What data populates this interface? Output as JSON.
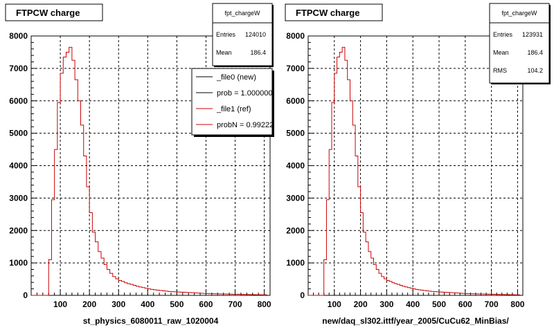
{
  "footer_text": "",
  "chart_data": [
    {
      "type": "histogram",
      "title": "FTPCW charge",
      "xlabel": "st_physics_6080011_raw_1020004",
      "ylabel": "",
      "xlim": [
        0,
        820
      ],
      "ylim": [
        0,
        8000
      ],
      "x_ticks": [
        100,
        200,
        300,
        400,
        500,
        600,
        700,
        800
      ],
      "y_ticks": [
        0,
        1000,
        2000,
        3000,
        4000,
        5000,
        6000,
        7000,
        8000
      ],
      "grid": true,
      "stats": {
        "name": "fpt_chargeW",
        "rows": [
          {
            "label": "Entries",
            "value": "124010"
          },
          {
            "label": "Mean",
            "value": "186.4"
          }
        ]
      },
      "legend": {
        "placement": "top-right",
        "entries": [
          {
            "label": "_file0 (new)",
            "color": "#000000"
          },
          {
            "label": "prob = 1.000000",
            "color": "#000000"
          },
          {
            "label": "_file1 (ref)",
            "color": "#cc0000"
          },
          {
            "label": "probN = 0.992220",
            "color": "#cc0000"
          }
        ]
      },
      "series": [
        {
          "name": "_file1 (ref)",
          "color": "#cc0000",
          "bin_width": 10,
          "bin_start": 0,
          "values": [
            0,
            0,
            0,
            0,
            0,
            0,
            1100,
            2950,
            4500,
            5950,
            6850,
            7350,
            7500,
            7650,
            7250,
            6650,
            6000,
            5250,
            4300,
            3350,
            2550,
            1950,
            1650,
            1350,
            1150,
            950,
            800,
            680,
            580,
            510,
            460,
            430,
            390,
            360,
            340,
            310,
            280,
            260,
            240,
            220,
            200,
            185,
            170,
            160,
            150,
            140,
            130,
            120,
            115,
            110,
            105,
            100,
            95,
            90,
            85,
            80,
            75,
            70,
            65,
            60,
            55,
            52,
            50,
            48,
            46,
            44,
            42,
            40,
            38,
            36,
            34,
            32,
            30,
            28,
            26,
            24,
            22,
            20,
            18,
            16,
            15
          ]
        }
      ]
    },
    {
      "type": "histogram",
      "title": "FTPCW charge",
      "xlabel": "new/daq_sl302.ittf/year_2005/CuCu62_MinBias/",
      "ylabel": "",
      "xlim": [
        0,
        820
      ],
      "ylim": [
        0,
        8000
      ],
      "x_ticks": [
        100,
        200,
        300,
        400,
        500,
        600,
        700,
        800
      ],
      "y_ticks": [
        0,
        1000,
        2000,
        3000,
        4000,
        5000,
        6000,
        7000,
        8000
      ],
      "grid": true,
      "stats": {
        "name": "fpt_chargeW",
        "rows": [
          {
            "label": "Entries",
            "value": "123931"
          },
          {
            "label": "Mean",
            "value": "186.4"
          },
          {
            "label": "RMS",
            "value": "104.2"
          }
        ]
      },
      "series": [
        {
          "color": "#cc0000",
          "bin_width": 10,
          "bin_start": 0,
          "values": [
            0,
            0,
            0,
            0,
            0,
            0,
            1100,
            2950,
            4500,
            5950,
            6850,
            7350,
            7500,
            7650,
            7250,
            6650,
            6000,
            5250,
            4300,
            3350,
            2550,
            1950,
            1650,
            1350,
            1150,
            950,
            800,
            680,
            580,
            510,
            460,
            430,
            390,
            360,
            340,
            310,
            280,
            260,
            240,
            220,
            200,
            185,
            170,
            160,
            150,
            140,
            130,
            120,
            115,
            110,
            105,
            100,
            95,
            90,
            85,
            80,
            75,
            70,
            65,
            60,
            55,
            52,
            50,
            48,
            46,
            44,
            42,
            40,
            38,
            36,
            34,
            32,
            30,
            28,
            26,
            24,
            22,
            20,
            18,
            16,
            15
          ]
        }
      ]
    }
  ]
}
